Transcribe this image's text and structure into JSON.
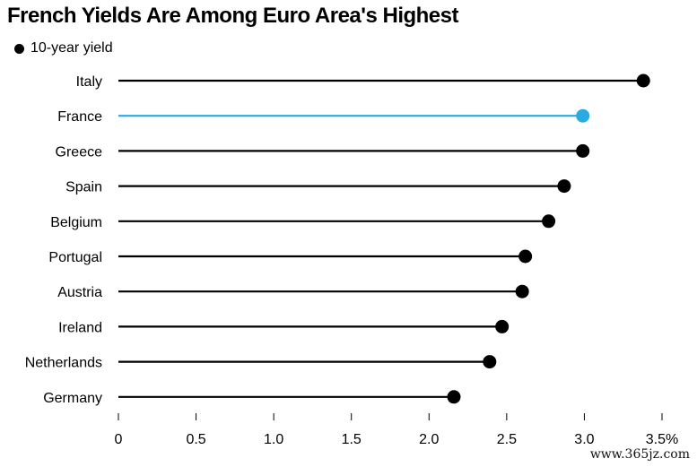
{
  "title": "French Yields Are Among Euro Area's Highest",
  "legend_label": "10-year yield",
  "watermark": "www.365jz.com",
  "colors": {
    "default": "#000000",
    "highlight": "#29abe2"
  },
  "chart_data": {
    "type": "dot-plot",
    "title": "French Yields Are Among Euro Area's Highest",
    "series": [
      {
        "name": "10-year yield",
        "values": [
          3.38,
          2.99,
          2.99,
          2.87,
          2.77,
          2.62,
          2.6,
          2.47,
          2.39,
          2.16
        ]
      }
    ],
    "categories": [
      "Italy",
      "France",
      "Greece",
      "Spain",
      "Belgium",
      "Portugal",
      "Austria",
      "Ireland",
      "Netherlands",
      "Germany"
    ],
    "highlight": "France",
    "xlim": [
      0,
      3.5
    ],
    "xticks": [
      0,
      0.5,
      1.0,
      1.5,
      2.0,
      2.5,
      3.0,
      3.5
    ],
    "xtick_labels": [
      "0",
      "0.5",
      "1.0",
      "1.5",
      "2.0",
      "2.5",
      "3.0",
      "3.5%"
    ],
    "xlabel": "",
    "ylabel": "",
    "grid": false,
    "legend_position": "top-left"
  }
}
